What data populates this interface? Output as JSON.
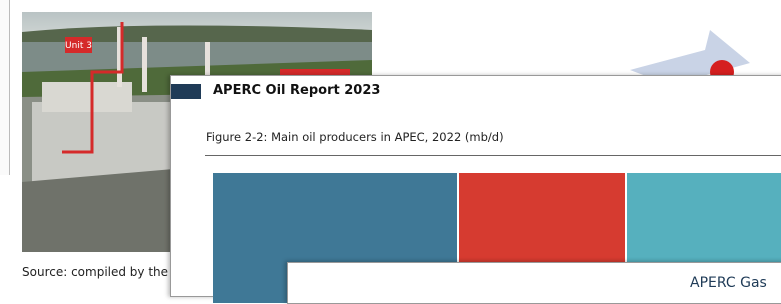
{
  "back_page": {
    "photo_label": "Unit 3",
    "caption": "Source: compiled by the au"
  },
  "oil_page": {
    "header": "APERC Oil Report 2023",
    "figure_caption": "Figure 2-2: Main oil producers in APEC, 2022 (mb/d)"
  },
  "gas_page": {
    "header": "APERC Gas"
  }
}
